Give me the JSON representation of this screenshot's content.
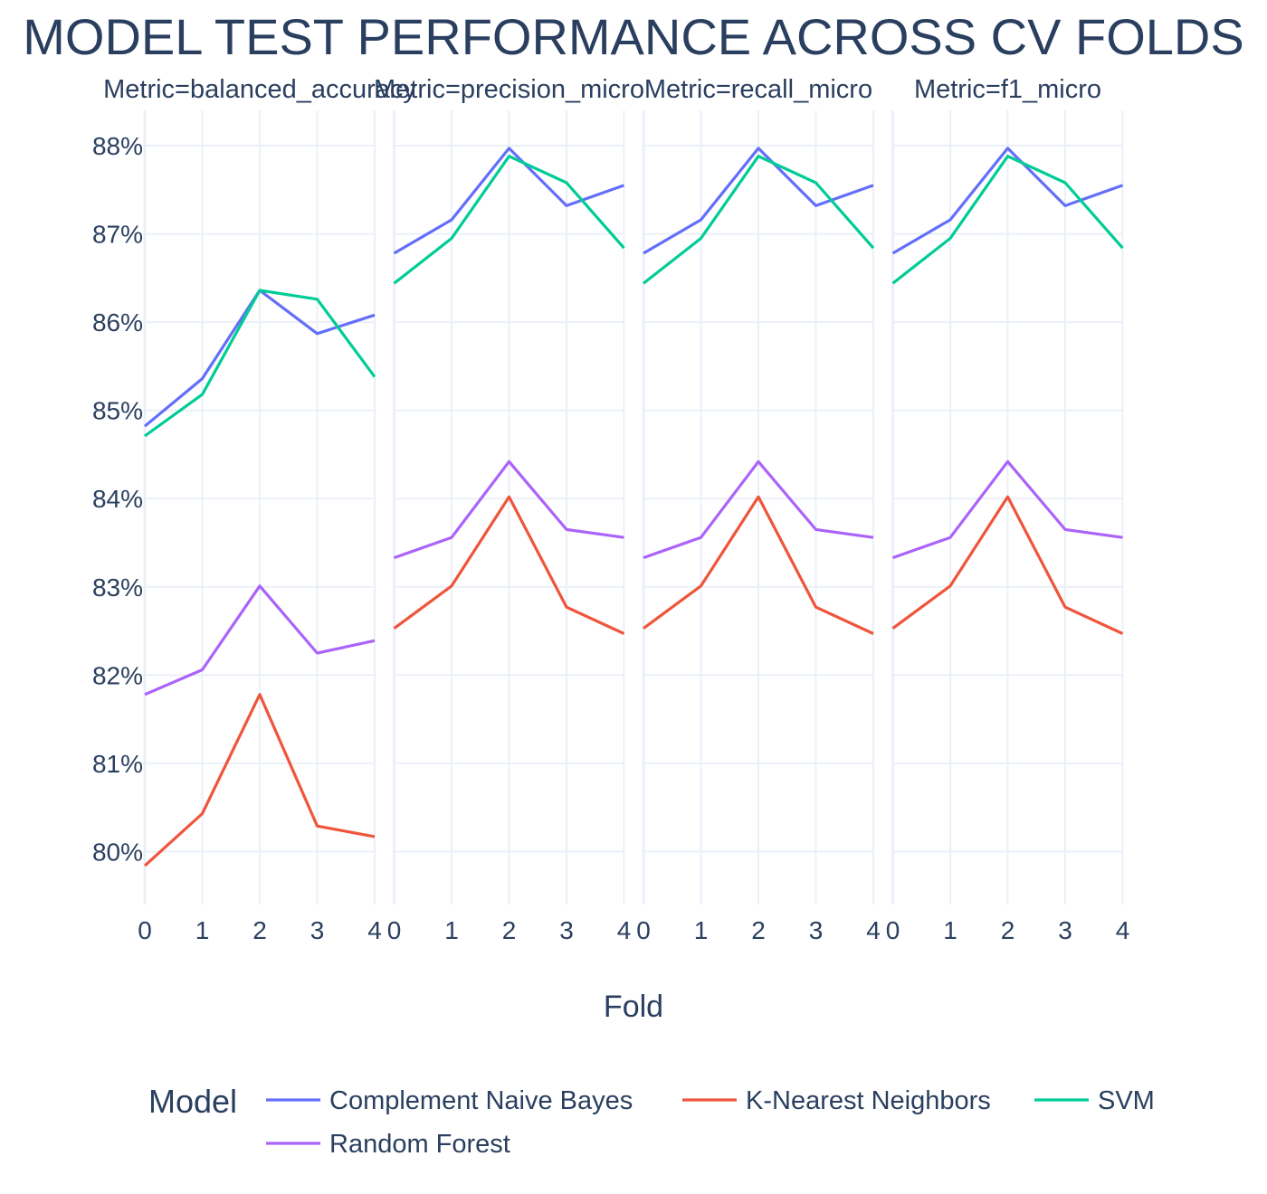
{
  "chart_data": {
    "type": "line",
    "title": "MODEL TEST PERFORMANCE ACROSS CV FOLDS",
    "xlabel": "Fold",
    "ylabel": "",
    "x": [
      0,
      1,
      2,
      3,
      4
    ],
    "x_tick_labels": [
      "0",
      "1",
      "2",
      "3",
      "4"
    ],
    "ylim": [
      0.794,
      0.884
    ],
    "y_ticks": [
      0.8,
      0.81,
      0.82,
      0.83,
      0.84,
      0.85,
      0.86,
      0.87,
      0.88
    ],
    "y_tick_labels": [
      "80%",
      "81%",
      "82%",
      "83%",
      "84%",
      "85%",
      "86%",
      "87%",
      "88%"
    ],
    "grid": true,
    "legend": {
      "title": "Model",
      "placement": "bottom",
      "entries": [
        "Complement Naive Bayes",
        "K-Nearest Neighbors",
        "SVM",
        "Random Forest"
      ]
    },
    "colors": {
      "Complement Naive Bayes": "#636efa",
      "K-Nearest Neighbors": "#EF553B",
      "SVM": "#00cc96",
      "Random Forest": "#ab63fa"
    },
    "panels": [
      {
        "title": "Metric=balanced_accuracy",
        "series": [
          {
            "name": "Complement Naive Bayes",
            "values": [
              0.8482,
              0.8536,
              0.8636,
              0.8587,
              0.8608
            ]
          },
          {
            "name": "K-Nearest Neighbors",
            "values": [
              0.7984,
              0.8043,
              0.8178,
              0.8029,
              0.8017
            ]
          },
          {
            "name": "SVM",
            "values": [
              0.8471,
              0.8518,
              0.8636,
              0.8626,
              0.8538
            ]
          },
          {
            "name": "Random Forest",
            "values": [
              0.8178,
              0.8206,
              0.8301,
              0.8225,
              0.8239
            ]
          }
        ]
      },
      {
        "title": "Metric=precision_micro",
        "series": [
          {
            "name": "Complement Naive Bayes",
            "values": [
              0.8678,
              0.8716,
              0.8797,
              0.8732,
              0.8755
            ]
          },
          {
            "name": "K-Nearest Neighbors",
            "values": [
              0.8253,
              0.8301,
              0.8402,
              0.8277,
              0.8247
            ]
          },
          {
            "name": "SVM",
            "values": [
              0.8644,
              0.8695,
              0.8788,
              0.8758,
              0.8684
            ]
          },
          {
            "name": "Random Forest",
            "values": [
              0.8333,
              0.8356,
              0.8442,
              0.8365,
              0.8356
            ]
          }
        ]
      },
      {
        "title": "Metric=recall_micro",
        "series": [
          {
            "name": "Complement Naive Bayes",
            "values": [
              0.8678,
              0.8716,
              0.8797,
              0.8732,
              0.8755
            ]
          },
          {
            "name": "K-Nearest Neighbors",
            "values": [
              0.8253,
              0.8301,
              0.8402,
              0.8277,
              0.8247
            ]
          },
          {
            "name": "SVM",
            "values": [
              0.8644,
              0.8695,
              0.8788,
              0.8758,
              0.8684
            ]
          },
          {
            "name": "Random Forest",
            "values": [
              0.8333,
              0.8356,
              0.8442,
              0.8365,
              0.8356
            ]
          }
        ]
      },
      {
        "title": "Metric=f1_micro",
        "series": [
          {
            "name": "Complement Naive Bayes",
            "values": [
              0.8678,
              0.8716,
              0.8797,
              0.8732,
              0.8755
            ]
          },
          {
            "name": "K-Nearest Neighbors",
            "values": [
              0.8253,
              0.8301,
              0.8402,
              0.8277,
              0.8247
            ]
          },
          {
            "name": "SVM",
            "values": [
              0.8644,
              0.8695,
              0.8788,
              0.8758,
              0.8684
            ]
          },
          {
            "name": "Random Forest",
            "values": [
              0.8333,
              0.8356,
              0.8442,
              0.8365,
              0.8356
            ]
          }
        ]
      }
    ]
  }
}
